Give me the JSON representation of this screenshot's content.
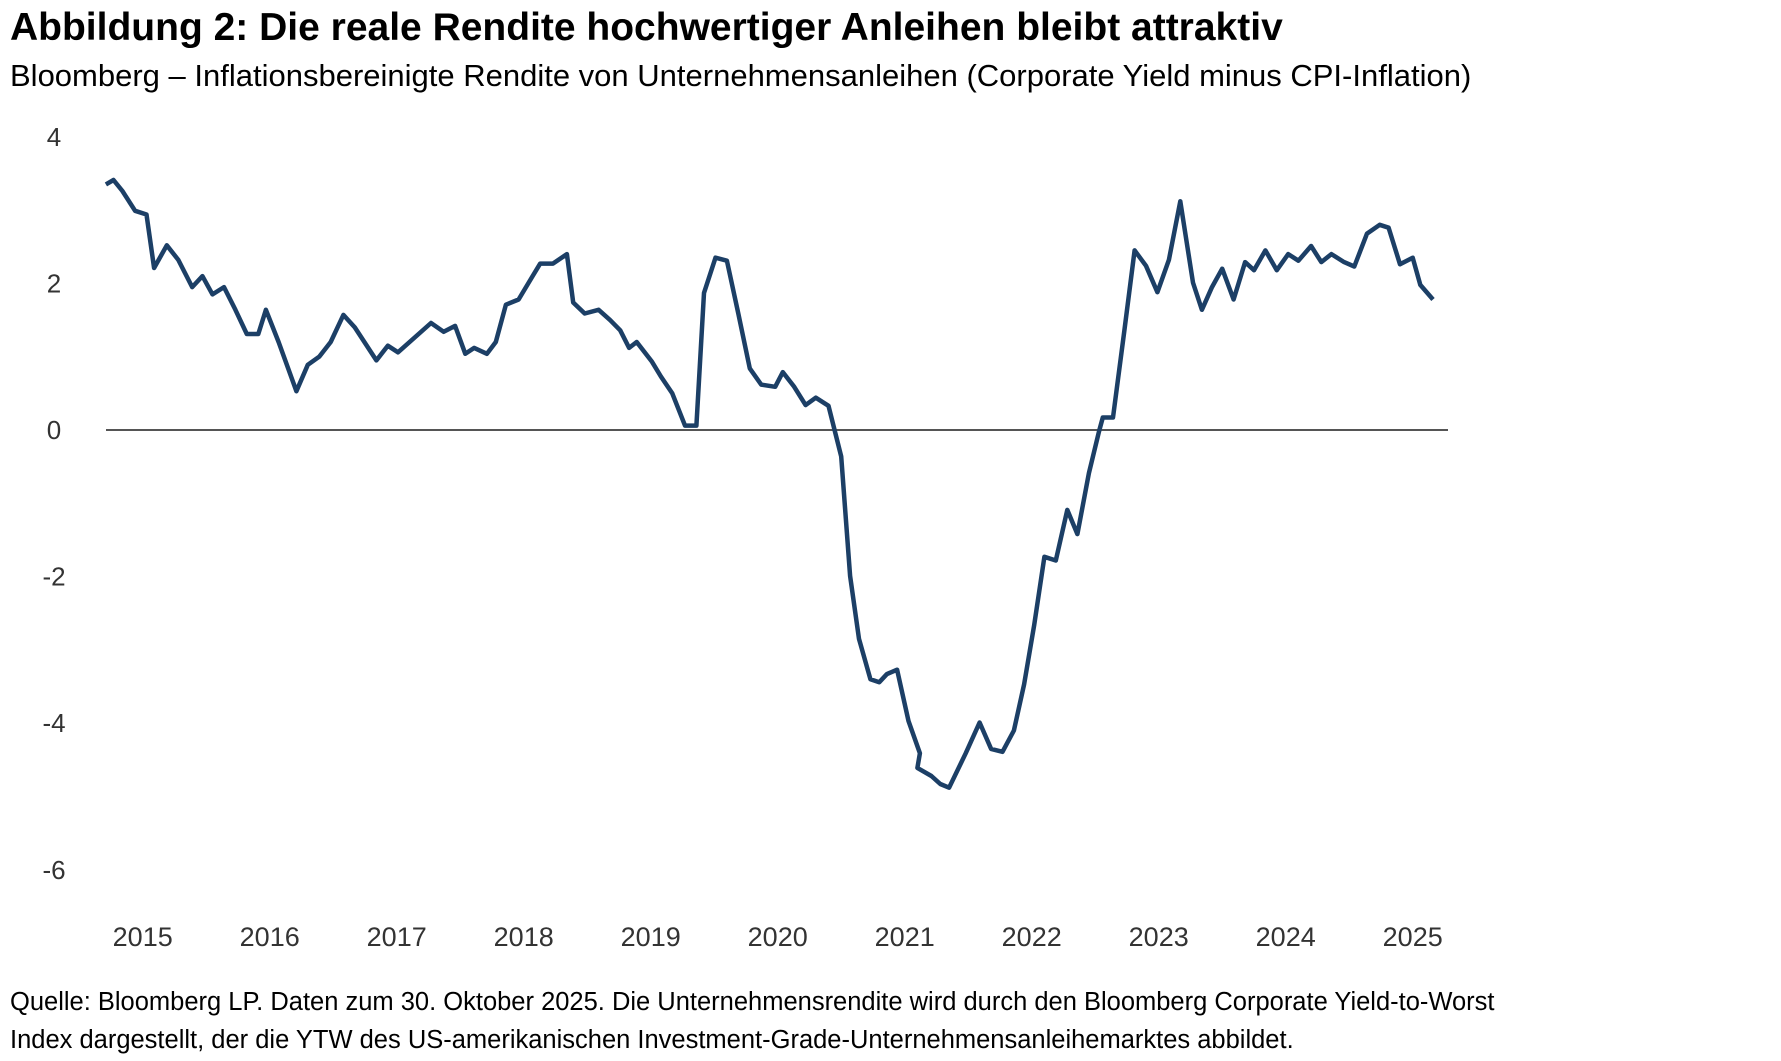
{
  "title": "Abbildung 2: Die reale Rendite hochwertiger Anleihen bleibt attraktiv",
  "subtitle": "Bloomberg – Inflationsbereinigte Rendite von Unternehmensanleihen (Corporate Yield minus CPI-Inflation)",
  "footnote": {
    "line1": "Quelle: Bloomberg LP. Daten zum 30. Oktober 2025. Die Unternehmensrendite wird durch den Bloomberg Corporate Yield-to-Worst",
    "line2": "Index dargestellt, der die YTW des US-amerikanischen Investment-Grade-Unternehmensanleihemarktes abbildet."
  },
  "chart_data": {
    "type": "line",
    "title": "",
    "xlabel": "",
    "ylabel": "",
    "ylim": [
      -6,
      4
    ],
    "yticks": [
      "4",
      "2",
      "0",
      "-2",
      "-4",
      "-6"
    ],
    "xticks": [
      "2015",
      "2016",
      "2017",
      "2018",
      "2019",
      "2020",
      "2021",
      "2022",
      "2023",
      "2024",
      "2025"
    ],
    "grid": false,
    "zero_line": true,
    "line_color": "#1c3f66",
    "series": [
      {
        "x": [
          2015.21,
          2015.27,
          2015.34,
          2015.44,
          2015.53,
          2015.59,
          2015.69,
          2015.78,
          2015.89,
          2015.97,
          2016.05,
          2016.14,
          2016.23,
          2016.32,
          2016.41,
          2016.47,
          2016.57,
          2016.71,
          2016.8,
          2016.89,
          2016.98,
          2017.08,
          2017.17,
          2017.34,
          2017.43,
          2017.51,
          2017.77,
          2017.87,
          2017.96,
          2018.04,
          2018.11,
          2018.21,
          2018.28,
          2018.36,
          2018.46,
          2018.57,
          2018.63,
          2018.73,
          2018.84,
          2018.89,
          2018.98,
          2019.09,
          2019.18,
          2019.26,
          2019.33,
          2019.39,
          2019.51,
          2019.58,
          2019.67,
          2019.77,
          2019.86,
          2019.92,
          2020.01,
          2020.1,
          2020.19,
          2020.28,
          2020.37,
          2020.48,
          2020.54,
          2020.63,
          2020.72,
          2020.8,
          2020.9,
          2021.0,
          2021.07,
          2021.14,
          2021.23,
          2021.3,
          2021.36,
          2021.44,
          2021.53,
          2021.62,
          2021.6,
          2021.71,
          2021.78,
          2021.85,
          2021.98,
          2022.09,
          2022.18,
          2022.27,
          2022.36,
          2022.44,
          2022.52,
          2022.6,
          2022.69,
          2022.78,
          2022.86,
          2022.95,
          2023.03,
          2023.06,
          2023.14,
          2023.23,
          2023.31,
          2023.4,
          2023.49,
          2023.58,
          2023.67,
          2023.77,
          2023.84,
          2023.92,
          2024.0,
          2024.09,
          2024.18,
          2024.25,
          2024.34,
          2024.43,
          2024.52,
          2024.6,
          2024.7,
          2024.78,
          2024.86,
          2024.96,
          2025.04,
          2025.14,
          2025.24,
          2025.31,
          2025.4,
          2025.5,
          2025.56,
          2025.66
        ],
        "y": [
          3.35,
          3.41,
          3.26,
          2.99,
          2.94,
          2.21,
          2.52,
          2.32,
          1.95,
          2.1,
          1.85,
          1.95,
          1.64,
          1.31,
          1.31,
          1.64,
          1.2,
          0.53,
          0.89,
          1.0,
          1.2,
          1.57,
          1.4,
          0.95,
          1.15,
          1.06,
          1.46,
          1.34,
          1.42,
          1.04,
          1.12,
          1.04,
          1.2,
          1.71,
          1.78,
          2.1,
          2.27,
          2.27,
          2.4,
          1.74,
          1.59,
          1.64,
          1.5,
          1.36,
          1.12,
          1.2,
          0.93,
          0.73,
          0.5,
          0.06,
          0.06,
          1.87,
          2.35,
          2.31,
          1.59,
          0.84,
          0.62,
          0.59,
          0.79,
          0.59,
          0.34,
          0.44,
          0.33,
          -0.36,
          -1.99,
          -2.85,
          -3.4,
          -3.44,
          -3.33,
          -3.27,
          -3.97,
          -4.41,
          -4.61,
          -4.72,
          -4.83,
          -4.88,
          -4.41,
          -3.99,
          -4.35,
          -4.39,
          -4.1,
          -3.47,
          -2.66,
          -1.73,
          -1.78,
          -1.09,
          -1.42,
          -0.59,
          -0.02,
          0.17,
          0.17,
          1.36,
          2.45,
          2.24,
          1.88,
          2.32,
          3.12,
          2.01,
          1.64,
          1.95,
          2.2,
          1.78,
          2.29,
          2.18,
          2.45,
          2.18,
          2.4,
          2.31,
          2.51,
          2.29,
          2.4,
          2.29,
          2.23,
          2.68,
          2.8,
          2.76,
          2.26,
          2.35,
          1.98,
          1.78
        ]
      }
    ]
  }
}
